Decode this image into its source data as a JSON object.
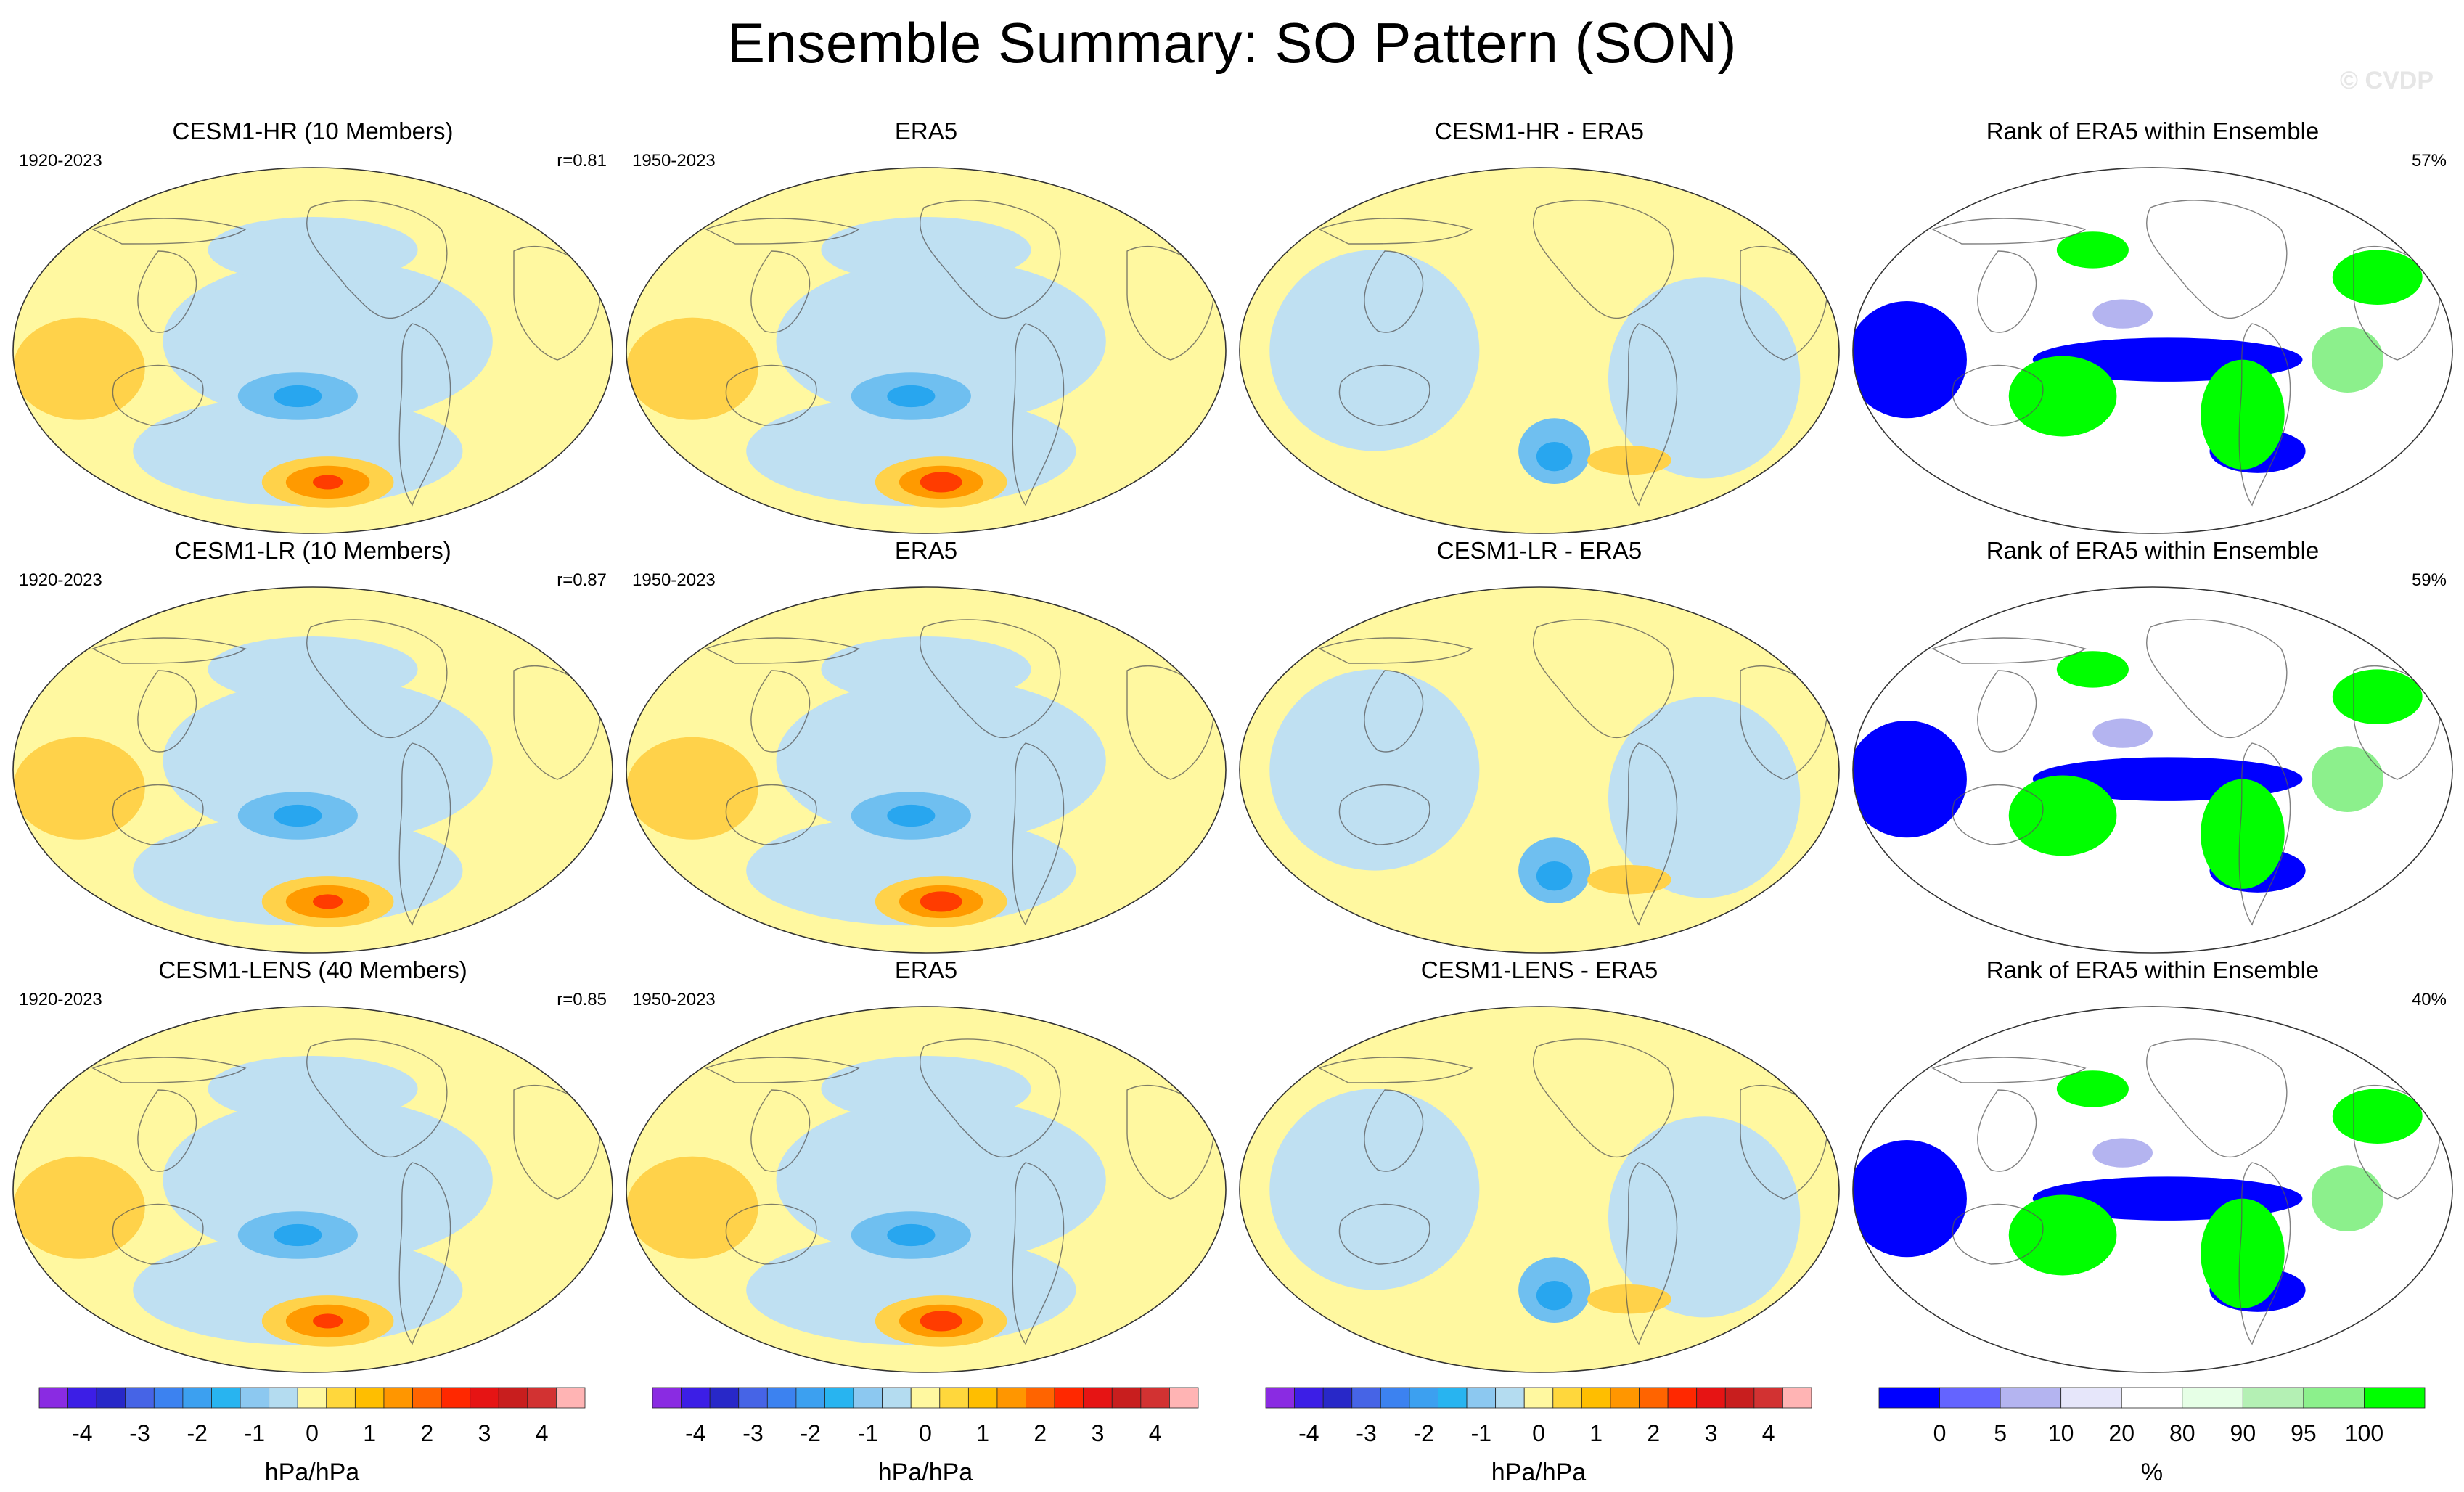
{
  "title": "Ensemble Summary: SO Pattern (SON)",
  "watermark": "© CVDP",
  "palette": {
    "diverging": [
      "#8a2be2",
      "#3c1ee6",
      "#2828c8",
      "#4664e6",
      "#3c82f0",
      "#3ca0f0",
      "#28b4f0",
      "#8cc8f0",
      "#b4dcf0",
      "#fff8a0",
      "#ffd73c",
      "#ffbe00",
      "#ff9600",
      "#ff6400",
      "#ff2800",
      "#e61414",
      "#c81e1e",
      "#d23232",
      "#ffb4b4"
    ],
    "diverging_ticks": [
      "-4",
      "-3",
      "-2",
      "-1",
      "0",
      "1",
      "2",
      "3",
      "4"
    ],
    "rank": [
      "#0000ff",
      "#6464ff",
      "#b4b4f0",
      "#e6e6fa",
      "#ffffff",
      "#e6ffe6",
      "#b4f0b4",
      "#8cf08c",
      "#00ff00"
    ],
    "rank_ticks": [
      "0",
      "5",
      "10",
      "20",
      "80",
      "90",
      "95",
      "100"
    ],
    "pos_light": "#fff8a0",
    "neg_light": "#bfe0f2",
    "neg_mid": "#6fbff0",
    "neg_dark": "#28a6ef",
    "pos_mid": "#ffd24a",
    "pos_strong": "#ff9a00",
    "pos_peak": "#ff3c00"
  },
  "rows": [
    {
      "model_title": "CESM1-HR (10 Members)",
      "model_period": "1920-2023",
      "model_corr": "r=0.81",
      "obs_title": "ERA5",
      "obs_period": "1950-2023",
      "diff_title": "CESM1-HR - ERA5",
      "rank_title": "Rank of ERA5 within Ensemble",
      "rank_pct": "57%"
    },
    {
      "model_title": "CESM1-LR (10 Members)",
      "model_period": "1920-2023",
      "model_corr": "r=0.87",
      "obs_title": "ERA5",
      "obs_period": "1950-2023",
      "diff_title": "CESM1-LR - ERA5",
      "rank_title": "Rank of ERA5 within Ensemble",
      "rank_pct": "59%"
    },
    {
      "model_title": "CESM1-LENS (40 Members)",
      "model_period": "1920-2023",
      "model_corr": "r=0.85",
      "obs_title": "ERA5",
      "obs_period": "1950-2023",
      "diff_title": "CESM1-LENS - ERA5",
      "rank_title": "Rank of ERA5 within Ensemble",
      "rank_pct": "40%"
    }
  ],
  "colorbars": [
    {
      "label": "hPa/hPa",
      "kind": "diverging"
    },
    {
      "label": "hPa/hPa",
      "kind": "diverging"
    },
    {
      "label": "hPa/hPa",
      "kind": "diverging"
    },
    {
      "label": "%",
      "kind": "rank"
    }
  ],
  "chart_data": {
    "type": "heatmap",
    "title": "Ensemble Summary: SO Pattern (SON)",
    "units": "hPa/hPa",
    "projection": "Robinson (Pacific-centered)",
    "panels": [
      {
        "row": 1,
        "col": 1,
        "title": "CESM1-HR (10 Members)",
        "period": "1920-2023",
        "pattern_corr": 0.81,
        "field": "pattern"
      },
      {
        "row": 1,
        "col": 2,
        "title": "ERA5",
        "period": "1950-2023",
        "field": "pattern"
      },
      {
        "row": 1,
        "col": 3,
        "title": "CESM1-HR - ERA5",
        "field": "difference"
      },
      {
        "row": 1,
        "col": 4,
        "title": "Rank of ERA5 within Ensemble",
        "field": "rank",
        "summary_percent": 57
      },
      {
        "row": 2,
        "col": 1,
        "title": "CESM1-LR (10 Members)",
        "period": "1920-2023",
        "pattern_corr": 0.87,
        "field": "pattern"
      },
      {
        "row": 2,
        "col": 2,
        "title": "ERA5",
        "period": "1950-2023",
        "field": "pattern"
      },
      {
        "row": 2,
        "col": 3,
        "title": "CESM1-LR - ERA5",
        "field": "difference"
      },
      {
        "row": 2,
        "col": 4,
        "title": "Rank of ERA5 within Ensemble",
        "field": "rank",
        "summary_percent": 59
      },
      {
        "row": 3,
        "col": 1,
        "title": "CESM1-LENS (40 Members)",
        "period": "1920-2023",
        "pattern_corr": 0.85,
        "field": "pattern"
      },
      {
        "row": 3,
        "col": 2,
        "title": "ERA5",
        "period": "1950-2023",
        "field": "pattern"
      },
      {
        "row": 3,
        "col": 3,
        "title": "CESM1-LENS - ERA5",
        "field": "difference"
      },
      {
        "row": 3,
        "col": 4,
        "title": "Rank of ERA5 within Ensemble",
        "field": "rank",
        "summary_percent": 40
      }
    ],
    "colorbar_diverging": {
      "ticks": [
        -4,
        -3,
        -2,
        -1,
        0,
        1,
        2,
        3,
        4
      ],
      "label": "hPa/hPa"
    },
    "colorbar_rank": {
      "ticks": [
        0,
        5,
        10,
        20,
        80,
        90,
        95,
        100
      ],
      "label": "%"
    }
  }
}
